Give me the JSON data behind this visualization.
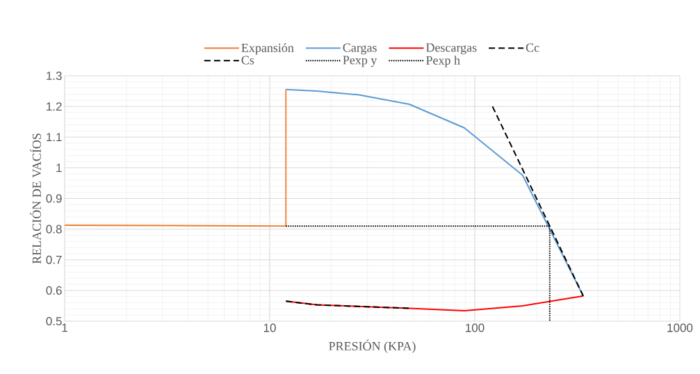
{
  "chart_data": {
    "type": "line",
    "xlabel": "PRESIÓN (KPA)",
    "ylabel": "RELACIÓN DE VACÍOS",
    "log": "x",
    "xlim": [
      1,
      1000
    ],
    "xticks": [
      1,
      10,
      100,
      1000
    ],
    "ylim": [
      0.5,
      1.3
    ],
    "yticks": [
      0.5,
      0.6,
      0.7,
      0.8,
      0.9,
      1,
      1.1,
      1.2,
      1.3
    ],
    "grid": true,
    "legend": "top",
    "marker": "none",
    "series": [
      {
        "name": "Expansión",
        "color": "#ed7d31",
        "line_style": "solid",
        "x": [
          1,
          12,
          12
        ],
        "values": [
          0.813,
          0.81,
          1.255
        ]
      },
      {
        "name": "Cargas",
        "color": "#5b9bd5",
        "line_style": "solid",
        "x": [
          12,
          17,
          27,
          48,
          89,
          171,
          338
        ],
        "values": [
          1.255,
          1.25,
          1.238,
          1.207,
          1.13,
          0.976,
          0.582
        ]
      },
      {
        "name": "Descargas",
        "color": "#ff0000",
        "line_style": "solid",
        "x": [
          338,
          171,
          89,
          48,
          27,
          17,
          12
        ],
        "values": [
          0.582,
          0.55,
          0.534,
          0.542,
          0.548,
          0.553,
          0.565
        ]
      },
      {
        "name": "Cc",
        "color": "#000000",
        "line_style": "dashed",
        "x": [
          122,
          338
        ],
        "values": [
          1.2,
          0.582
        ]
      },
      {
        "name": "Cs",
        "color": "#000000",
        "line_style": "dashed",
        "x": [
          12,
          17,
          27,
          48
        ],
        "values": [
          0.565,
          0.553,
          0.548,
          0.542
        ]
      },
      {
        "name": "Pexp y",
        "color": "#000000",
        "line_style": "dotted",
        "x": [
          12,
          232
        ],
        "values": [
          0.81,
          0.81
        ]
      },
      {
        "name": "Pexp h",
        "color": "#000000",
        "line_style": "dotted",
        "x": [
          232,
          232
        ],
        "values": [
          0.81,
          0.5
        ]
      }
    ]
  }
}
